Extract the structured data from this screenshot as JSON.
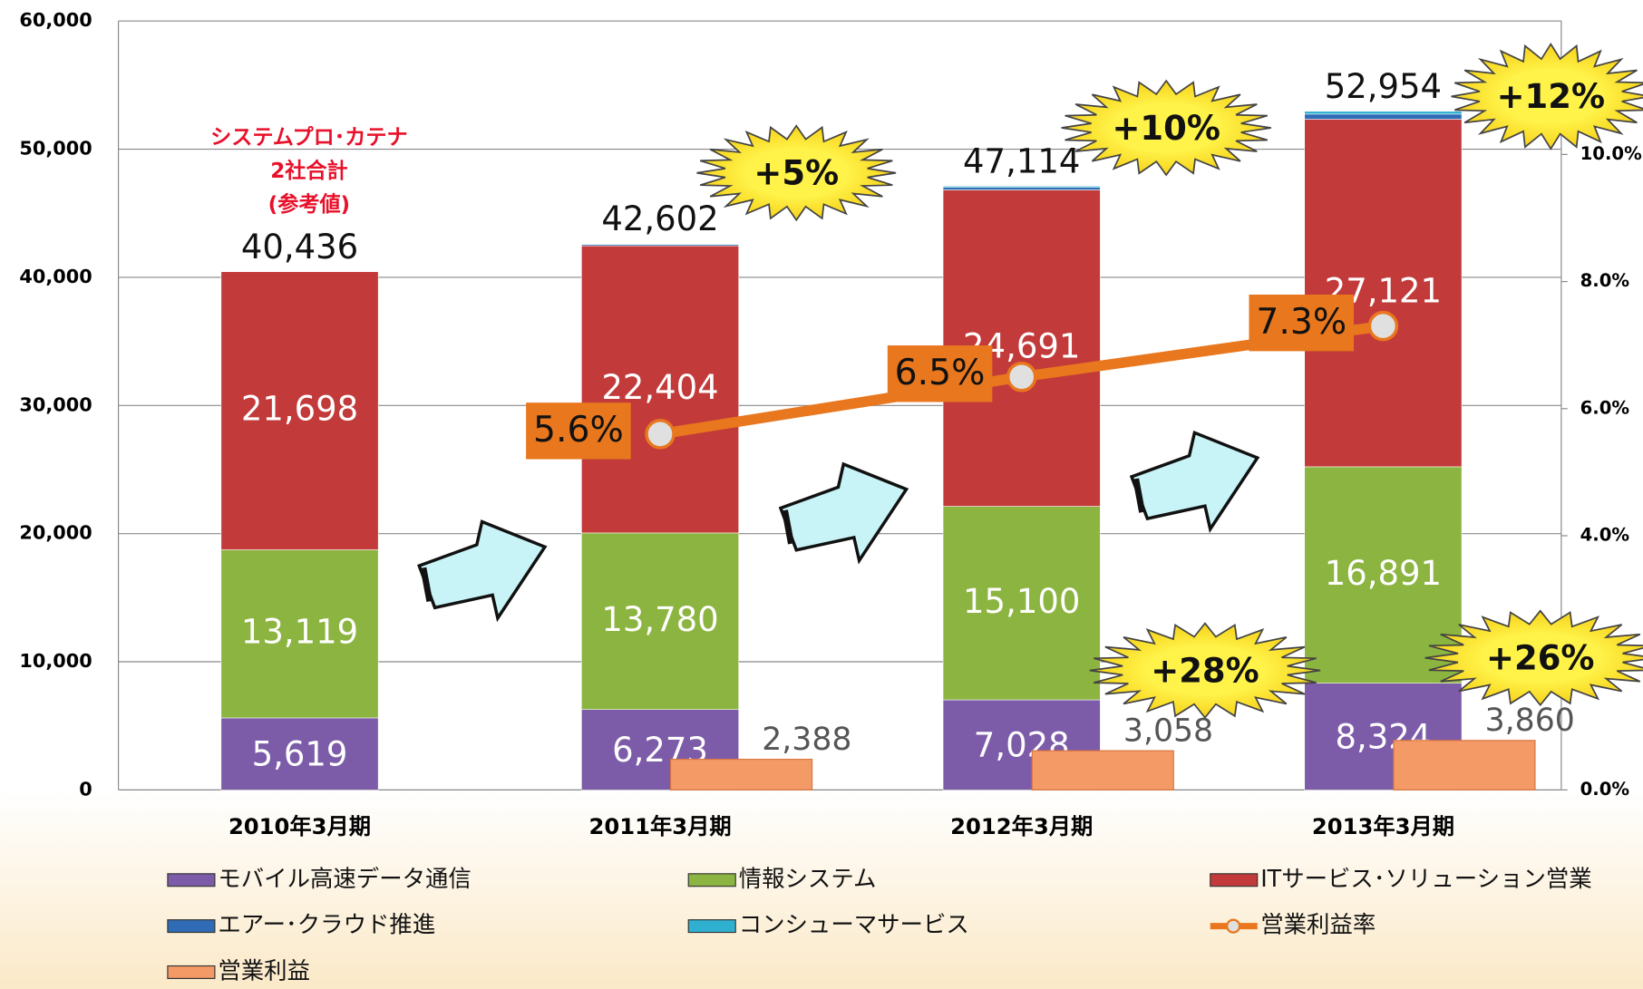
{
  "chart_data": {
    "type": "bar",
    "categories": [
      "2010年3月期",
      "2011年3月期",
      "2012年3月期",
      "2013年3月期"
    ],
    "series": [
      {
        "name": "モバイル高速データ通信",
        "color": "#7c5ca8",
        "values": [
          5619,
          6273,
          7028,
          8324
        ],
        "value_labels": [
          "5,619",
          "6,273",
          "7,028",
          "8,324"
        ]
      },
      {
        "name": "情報システム",
        "color": "#8cb440",
        "values": [
          13119,
          13780,
          15100,
          16891
        ],
        "value_labels": [
          "13,119",
          "13,780",
          "15,100",
          "16,891"
        ]
      },
      {
        "name": "ITサービス･ソリューション営業",
        "color": "#c23a3a",
        "values": [
          21698,
          22404,
          24691,
          27121
        ],
        "value_labels": [
          "21,698",
          "22,404",
          "24,691",
          "27,121"
        ]
      },
      {
        "name": "エアー･クラウド推進",
        "color": "#2f6cb5",
        "values": [
          0,
          100,
          200,
          400
        ]
      },
      {
        "name": "コンシューマサービス",
        "color": "#2fb0d0",
        "values": [
          0,
          45,
          95,
          218
        ]
      },
      {
        "name": "営業利益率",
        "color": "#e8771e",
        "type": "line",
        "axis": "y2",
        "values": [
          null,
          5.6,
          6.5,
          7.3
        ],
        "value_labels": [
          null,
          "5.6%",
          "6.5%",
          "7.3%"
        ]
      },
      {
        "name": "営業利益",
        "color": "#f39a66",
        "type": "bar",
        "values": [
          null,
          2388,
          3058,
          3860
        ],
        "value_labels": [
          null,
          "2,388",
          "3,058",
          "3,860"
        ]
      }
    ],
    "totals": [
      40436,
      42602,
      47114,
      52954
    ],
    "total_labels": [
      "40,436",
      "42,602",
      "47,114",
      "52,954"
    ],
    "note": [
      "システムプロ･カテナ",
      "2社合計",
      "(参考値)"
    ],
    "annotations": [
      "+5%",
      "+10%",
      "+12%",
      "+28%",
      "+26%"
    ],
    "ylim": [
      0,
      60000
    ],
    "yticks": [
      0,
      {
        "value": 10000,
        "label": "10,000"
      },
      {
        "value": 20000,
        "label": "20,000"
      },
      {
        "value": 30000,
        "label": "30,000"
      },
      {
        "value": 40000,
        "label": "40,000"
      },
      {
        "value": 50000,
        "label": "50,000"
      },
      {
        "value": 60000,
        "label": "60,000"
      }
    ],
    "y2lim": [
      0,
      12.1
    ],
    "y2ticks": [
      {
        "value": 0,
        "label": "0.0%"
      },
      {
        "value": 4,
        "label": "4.0%"
      },
      {
        "value": 6,
        "label": "6.0%"
      },
      {
        "value": 8,
        "label": "8.0%"
      },
      {
        "value": 10,
        "label": "10.0%"
      }
    ],
    "grid": true
  }
}
